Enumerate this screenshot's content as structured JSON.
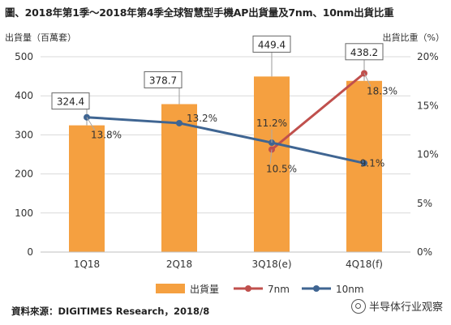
{
  "title": "圖、2018年第1季～2018年第4季全球智慧型手機AP出貨量及7nm、10nm出貨比重",
  "left_axis_unit": "出貨量（百萬套）",
  "right_axis_unit": "出貨比重（%）",
  "source": "資料來源：DIGITIMES Research，2018/8",
  "watermark": "半导体行业观察",
  "colors": {
    "bar": "#f5a040",
    "line_7nm": "#c0504d",
    "line_10nm": "#3f6592",
    "grid": "#d9d9d9"
  },
  "chart_data": {
    "type": "bar",
    "categories": [
      "1Q18",
      "2Q18",
      "3Q18(e)",
      "4Q18(f)"
    ],
    "y_left": {
      "lim": [
        0,
        500
      ],
      "ticks": [
        0,
        100,
        200,
        300,
        400,
        500
      ]
    },
    "y_right": {
      "lim": [
        0,
        20
      ],
      "ticks": [
        "0%",
        "5%",
        "10%",
        "15%",
        "20%"
      ]
    },
    "grid": true,
    "legend": "bottom",
    "series": [
      {
        "name": "出貨量",
        "kind": "bar",
        "axis": "left",
        "values": [
          324.4,
          378.7,
          449.4,
          438.2
        ],
        "labels": [
          "324.4",
          "378.7",
          "449.4",
          "438.2"
        ]
      },
      {
        "name": "7nm",
        "kind": "line",
        "axis": "right",
        "values": [
          null,
          null,
          10.5,
          18.3
        ],
        "labels": [
          "",
          "",
          "10.5%",
          "18.3%"
        ]
      },
      {
        "name": "10nm",
        "kind": "line",
        "axis": "right",
        "values": [
          13.8,
          13.2,
          11.2,
          9.1
        ],
        "labels": [
          "13.8%",
          "13.2%",
          "11.2%",
          "9.1%"
        ]
      }
    ]
  }
}
